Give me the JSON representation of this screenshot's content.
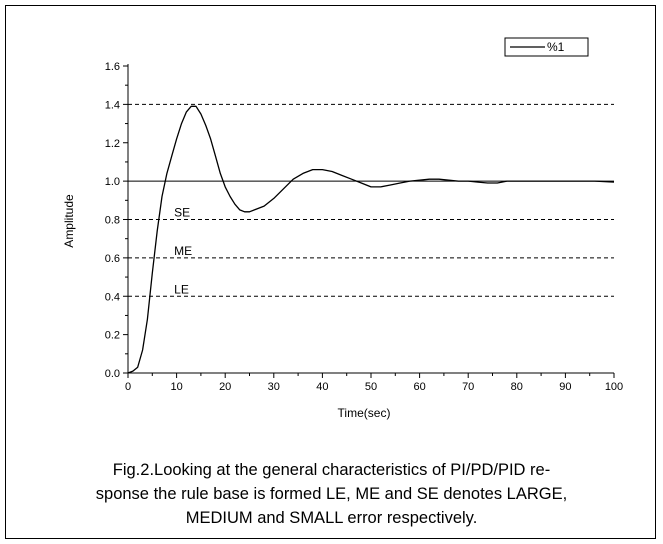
{
  "chart_data": {
    "type": "line",
    "title": "",
    "xlabel": "Time(sec)",
    "ylabel": "Amplitude",
    "xlim": [
      0,
      100
    ],
    "ylim": [
      0,
      1.6
    ],
    "xticks": [
      0,
      10,
      20,
      30,
      40,
      50,
      60,
      70,
      80,
      90,
      100
    ],
    "xtick_labels": [
      "0",
      "10",
      "20",
      "30",
      "40",
      "50",
      "60",
      "70",
      "80",
      "90",
      "100"
    ],
    "yticks": [
      0,
      0.2,
      0.4,
      0.6,
      0.8,
      1.0,
      1.2,
      1.4,
      1.6
    ],
    "ytick_labels": [
      "0.0",
      "0.2",
      "0.4",
      "0.6",
      "0.8",
      "1.0",
      "1.2",
      "1.4",
      "1.6"
    ],
    "legend": {
      "position": "top-right",
      "entries": [
        "%1"
      ]
    },
    "series": [
      {
        "name": "%1",
        "x": [
          0,
          1,
          2,
          3,
          4,
          5,
          6,
          7,
          8,
          9,
          10,
          11,
          12,
          13,
          14,
          15,
          16,
          17,
          18,
          19,
          20,
          21,
          22,
          23,
          24,
          25,
          26,
          28,
          30,
          32,
          34,
          36,
          38,
          40,
          42,
          44,
          46,
          48,
          50,
          52,
          54,
          56,
          58,
          60,
          62,
          64,
          66,
          68,
          70,
          72,
          74,
          76,
          78,
          80,
          84,
          88,
          92,
          96,
          100
        ],
        "values": [
          0.0,
          0.01,
          0.03,
          0.12,
          0.28,
          0.52,
          0.74,
          0.92,
          1.04,
          1.13,
          1.22,
          1.3,
          1.36,
          1.39,
          1.39,
          1.35,
          1.29,
          1.22,
          1.13,
          1.04,
          0.97,
          0.92,
          0.88,
          0.85,
          0.84,
          0.84,
          0.85,
          0.87,
          0.91,
          0.96,
          1.01,
          1.04,
          1.06,
          1.06,
          1.05,
          1.03,
          1.01,
          0.99,
          0.97,
          0.97,
          0.98,
          0.99,
          1.0,
          1.005,
          1.01,
          1.01,
          1.005,
          1.0,
          1.0,
          0.995,
          0.99,
          0.99,
          1.0,
          1.0,
          1.0,
          1.0,
          1.0,
          1.0,
          0.995
        ]
      }
    ],
    "reference_lines": [
      {
        "value": 1.4,
        "style": "dashed",
        "label": ""
      },
      {
        "value": 1.0,
        "style": "solid",
        "label": ""
      },
      {
        "value": 0.8,
        "style": "dashed",
        "label": "SE"
      },
      {
        "value": 0.6,
        "style": "dashed",
        "label": "ME"
      },
      {
        "value": 0.4,
        "style": "dashed",
        "label": "LE"
      }
    ]
  },
  "caption": {
    "line1": "Fig.2.Looking at the general characteristics of PI/PD/PID re-",
    "line2": "sponse the rule base is formed LE, ME and SE denotes LARGE,",
    "line3": "MEDIUM and SMALL error respectively."
  }
}
